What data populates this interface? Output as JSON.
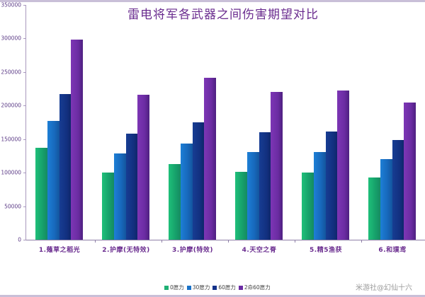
{
  "chart_data": {
    "type": "bar",
    "title": "雷电将军各武器之间伤害期望对比",
    "xlabel": "",
    "ylabel": "",
    "ylim": [
      0,
      350000
    ],
    "yticks": [
      0,
      50000,
      100000,
      150000,
      200000,
      250000,
      300000,
      350000
    ],
    "grid": false,
    "legend_position": "bottom",
    "categories": [
      "1.薙草之稻光",
      "2.护摩(无特效)",
      "3.护摩(特效)",
      "4.天空之脊",
      "5.精5渔获",
      "6.和璞鸢"
    ],
    "series": [
      {
        "name": "0愿力",
        "color": "#1fb074",
        "values": [
          137000,
          100500,
          112500,
          101000,
          100500,
          92500
        ]
      },
      {
        "name": "30愿力",
        "color": "#1a72c8",
        "values": [
          177500,
          128500,
          143500,
          131000,
          131000,
          120500
        ]
      },
      {
        "name": "60愿力",
        "color": "#13328a",
        "values": [
          217500,
          158000,
          175000,
          160000,
          161500,
          148500
        ]
      },
      {
        "name": "2命60愿力",
        "color": "#6b2ca3",
        "values": [
          298500,
          216500,
          241000,
          220000,
          222500,
          204500
        ]
      }
    ]
  },
  "title": "雷电将军各武器之间伤害期望对比",
  "yticks": [
    "350000",
    "300000",
    "250000",
    "200000",
    "150000",
    "100000",
    "50000",
    "0"
  ],
  "xlabels": [
    "1.薙草之稻光",
    "2.护摩(无特效)",
    "3.护摩(特效)",
    "4.天空之脊",
    "5.精5渔获",
    "6.和璞鸢"
  ],
  "legend": [
    "0愿力",
    "30愿力",
    "60愿力",
    "2命60愿力"
  ],
  "watermark": "米游社@幻仙十六"
}
